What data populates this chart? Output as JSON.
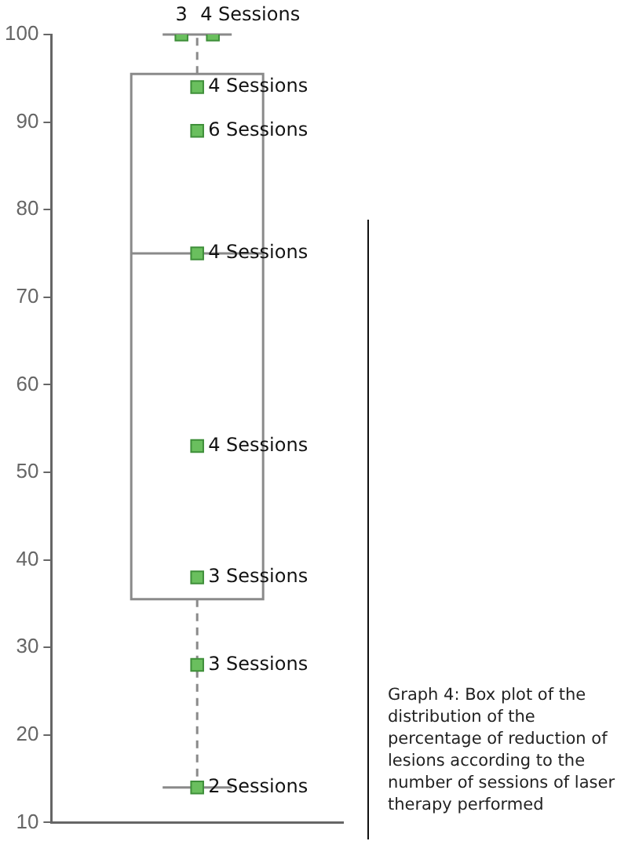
{
  "chart_data": {
    "type": "box",
    "categories": [
      null
    ],
    "boxes": [
      {
        "low": 14,
        "q1": 35.5,
        "median": 75,
        "q3": 95.5,
        "high": 100
      }
    ],
    "color": "#8a8a8a",
    "series": [
      {
        "type": "scatter",
        "color": "#6abf5e",
        "marker": "square",
        "x": [
          null,
          null,
          null,
          null,
          null,
          null,
          null,
          null,
          null
        ],
        "values": [
          100,
          100,
          94,
          89,
          75,
          53,
          38,
          28,
          14
        ]
      }
    ],
    "ylim": [
      10,
      100
    ],
    "yticks": [
      10,
      20,
      30,
      40,
      50,
      60,
      70,
      80,
      90,
      100
    ],
    "grid": false,
    "legend": false,
    "tick_labels": "y",
    "annotations": [
      "3",
      "4 Sessions",
      "4 Sessions",
      "6 Sessions",
      "4 Sessions",
      "4 Sessions",
      "3 Sessions",
      "3 Sessions",
      "2 Sessions",
      "Graph 4: Box plot of the distribution of the percentage of reduction of lesions according to the number of sessions of laser therapy performed"
    ]
  }
}
